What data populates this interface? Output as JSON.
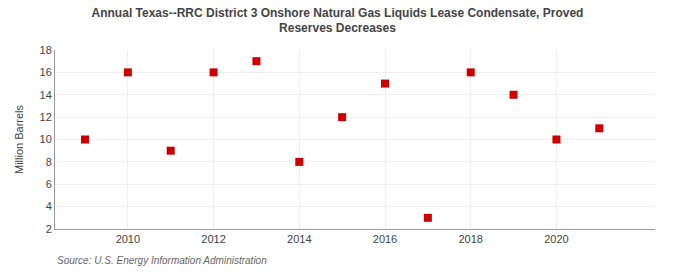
{
  "chart_data": {
    "type": "scatter",
    "title": "Annual Texas--RRC District 3 Onshore Natural Gas Liquids Lease Condensate, Proved\nReserves Decreases",
    "ylabel": "Million Barrels",
    "annotations": [
      "Source: U.S. Energy Information Administration"
    ],
    "x": [
      2009,
      2010,
      2011,
      2012,
      2013,
      2014,
      2015,
      2016,
      2017,
      2018,
      2019,
      2020,
      2021
    ],
    "values": [
      10.0,
      16.0,
      9.0,
      16.0,
      17.0,
      8.0,
      12.0,
      15.0,
      3.0,
      16.0,
      14.0,
      10.0,
      11.0
    ],
    "color": "#cc0000",
    "marker": "square",
    "xlim": [
      2008.3,
      2022.3
    ],
    "xticks": [
      2010,
      2012,
      2014,
      2016,
      2018,
      2020
    ],
    "ylim": [
      2,
      18
    ],
    "yticks": [
      2,
      4,
      6,
      8,
      10,
      12,
      14,
      16,
      18
    ],
    "grid": true
  }
}
